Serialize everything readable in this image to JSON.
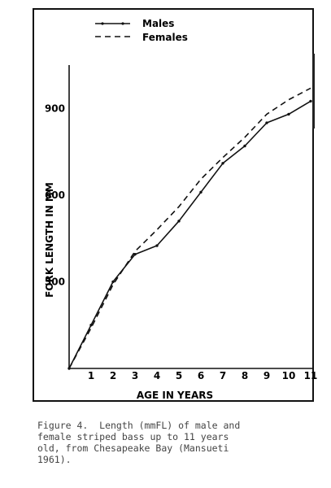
{
  "caption": "Figure 4.  Length (mmFL) of male and\nfemale striped bass up to 11 years\nold, from Chesapeake Bay (Mansueti\n1961).",
  "chart_data": {
    "type": "line",
    "title": "",
    "xlabel": "AGE IN YEARS",
    "ylabel": "FORK LENGTH IN MM",
    "x": [
      0,
      1,
      2,
      3,
      4,
      5,
      6,
      7,
      8,
      9,
      10,
      11
    ],
    "xticks": [
      1,
      2,
      3,
      4,
      5,
      6,
      7,
      8,
      9,
      10,
      11
    ],
    "yticks": [
      300,
      600,
      900
    ],
    "xlim": [
      0,
      11
    ],
    "ylim": [
      0,
      1050
    ],
    "grid": false,
    "legend_position": "top",
    "series": [
      {
        "name": "Males",
        "style": "solid",
        "color": "#111111",
        "values": [
          0,
          150,
          300,
          395,
          425,
          510,
          610,
          710,
          770,
          850,
          880,
          925
        ]
      },
      {
        "name": "Females",
        "style": "dashed",
        "color": "#111111",
        "values": [
          0,
          140,
          290,
          405,
          480,
          560,
          655,
          730,
          800,
          880,
          930,
          970
        ]
      }
    ]
  }
}
